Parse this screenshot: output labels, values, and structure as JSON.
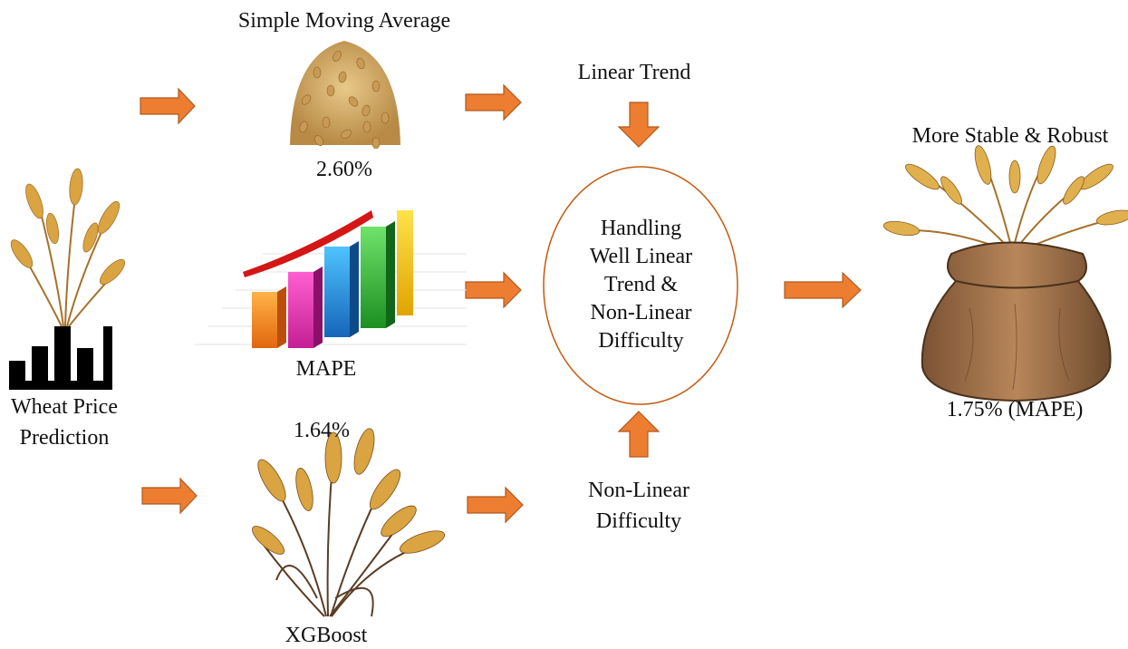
{
  "input": {
    "label_line1": "Wheat Price",
    "label_line2": "Prediction",
    "icon": "wheat-bar-chart-icon"
  },
  "sma": {
    "title": "Simple Moving Average",
    "value": "2.60%",
    "icon": "grain-pile-icon"
  },
  "mape": {
    "label": "MAPE",
    "icon": "rising-bar-chart-icon"
  },
  "xgboost": {
    "title": "XGBoost",
    "value": "1.64%",
    "icon": "wheat-bundle-icon"
  },
  "linear_trend": {
    "label": "Linear Trend"
  },
  "non_linear": {
    "label_line1": "Non-Linear",
    "label_line2": "Difficulty"
  },
  "center": {
    "lines": [
      "Handling",
      "Well Linear",
      "Trend &",
      "Non-Linear",
      "Difficulty"
    ]
  },
  "result": {
    "title": "More Stable & Robust",
    "value": "1.75% (MAPE)",
    "icon": "wheat-sack-icon"
  },
  "colors": {
    "arrow": "#ED7D31",
    "arrow_stroke": "#AE5A21",
    "ellipse": "#C55A11",
    "wheat": "#D9A441",
    "sack": "#A57548"
  }
}
